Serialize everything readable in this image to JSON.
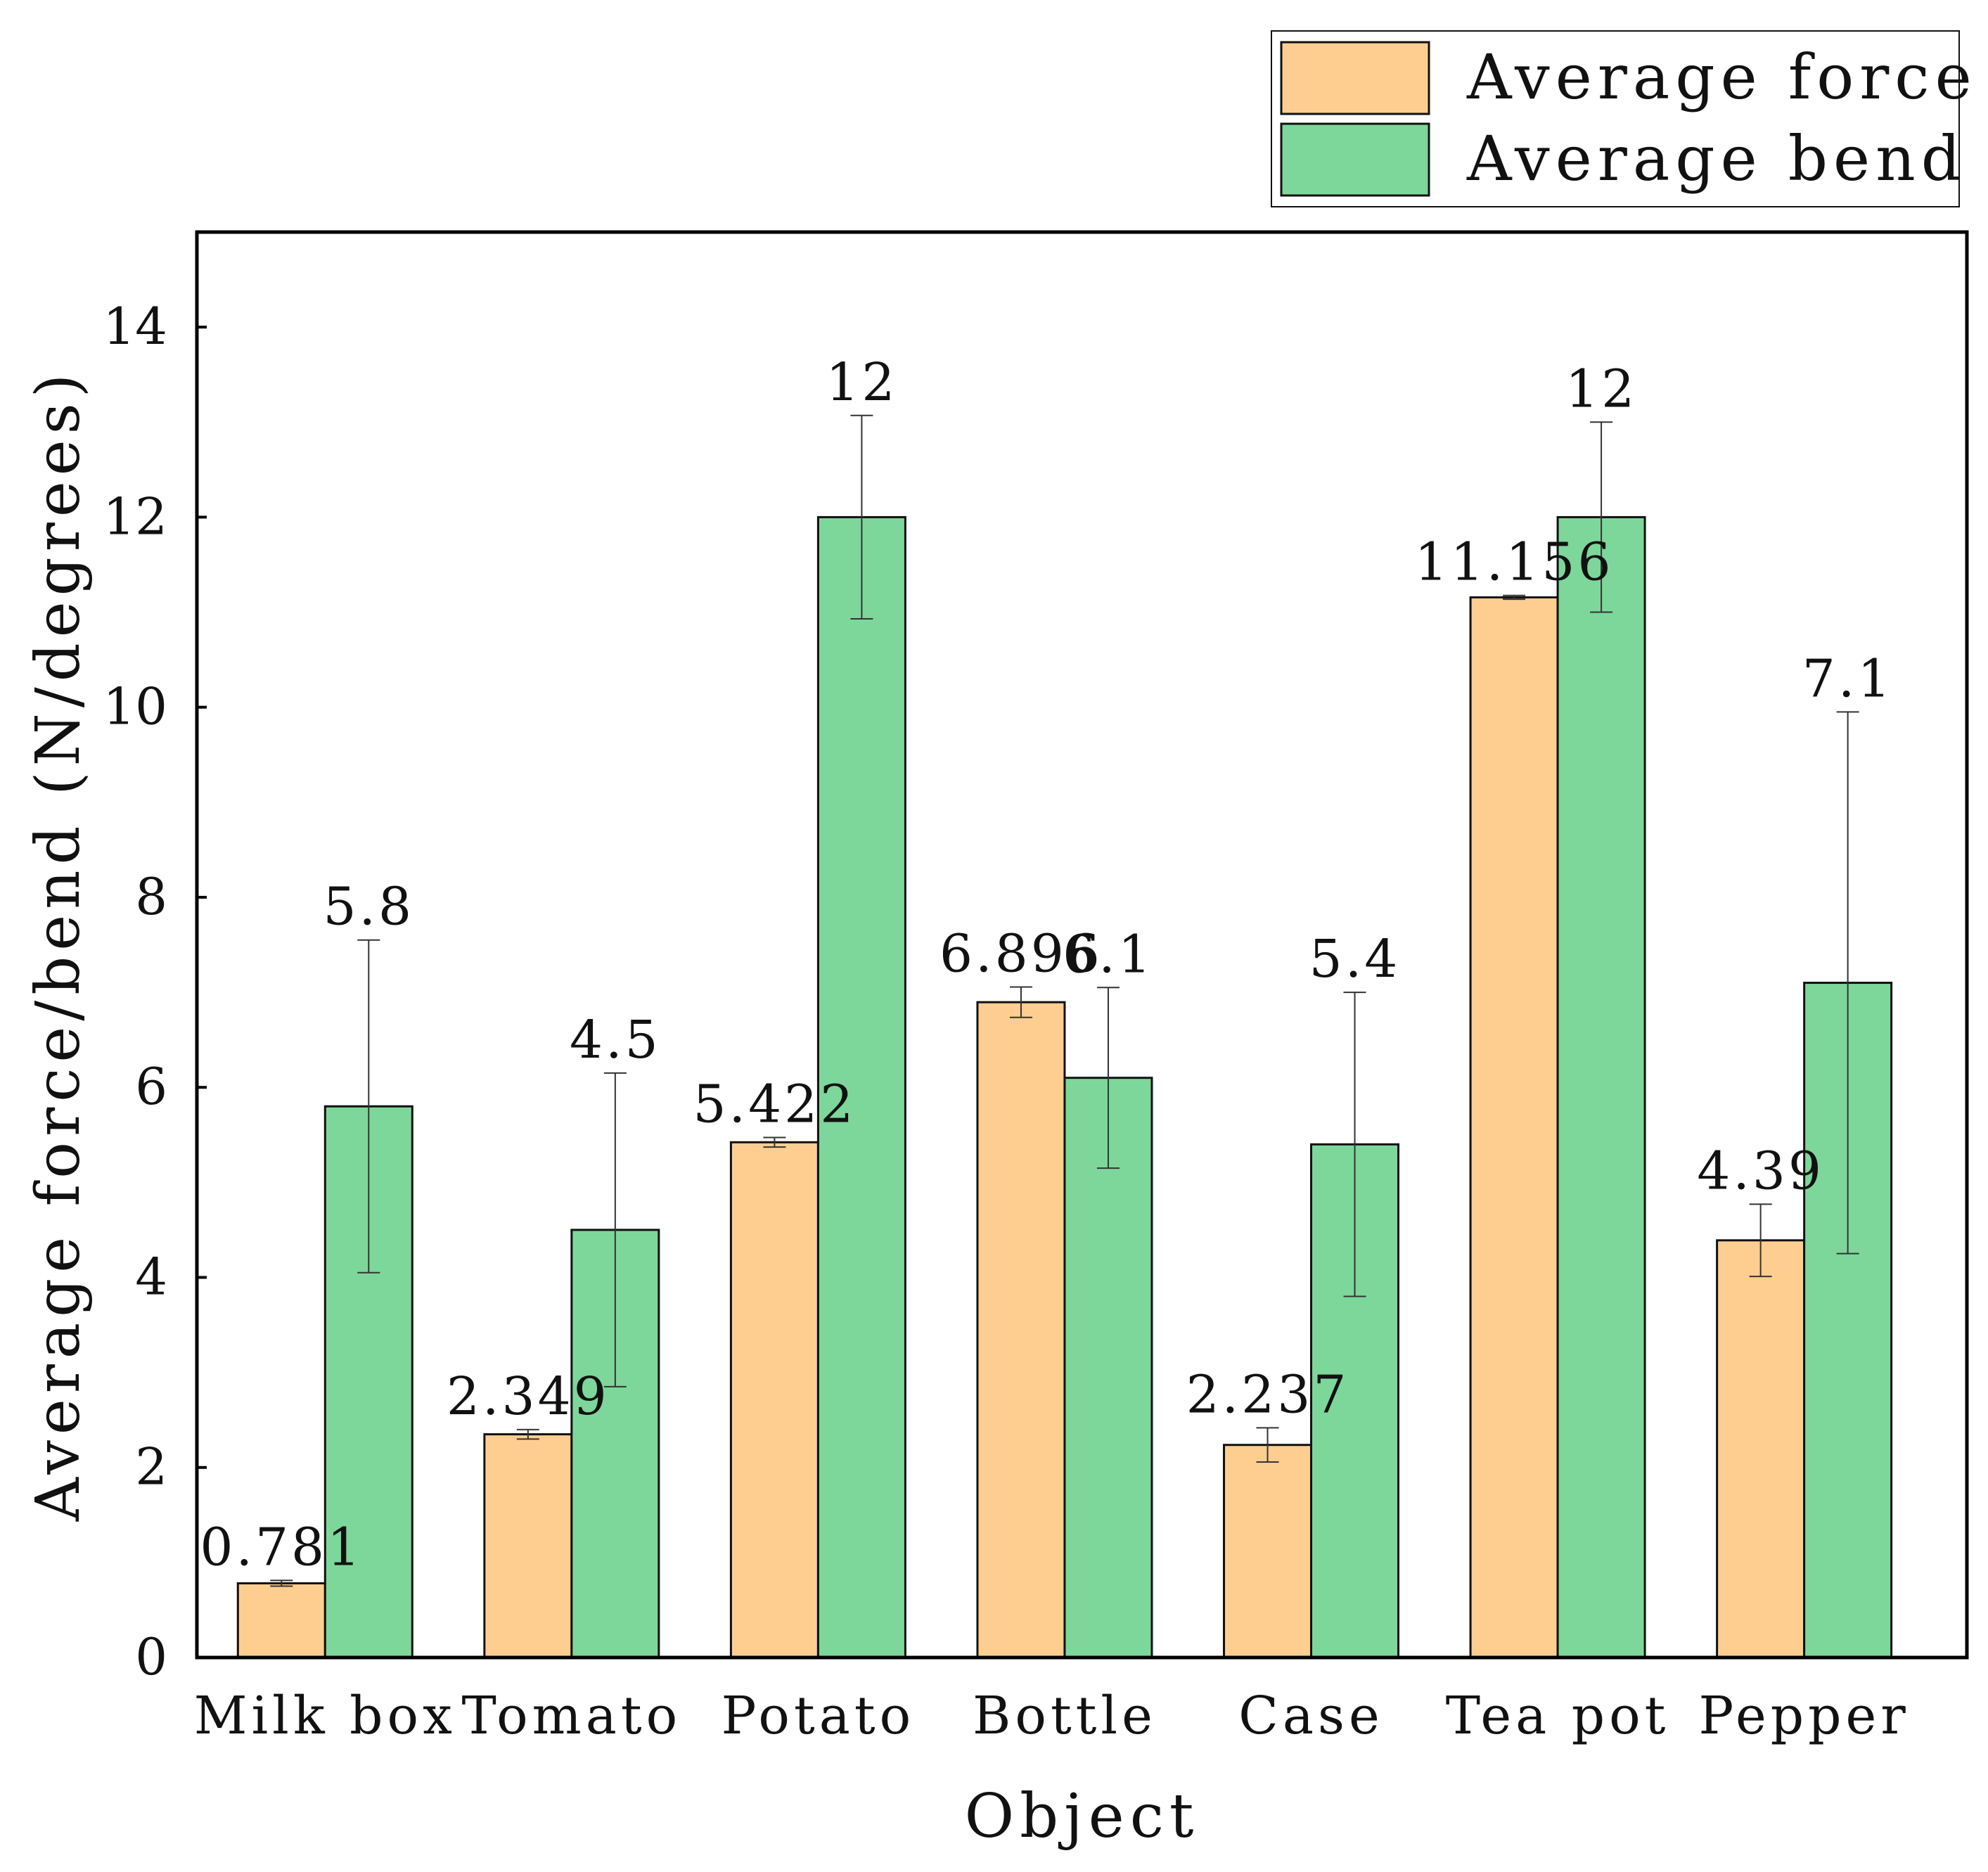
{
  "chart_data": {
    "type": "bar",
    "title": "",
    "xlabel": "Object",
    "ylabel": "Average force/bend (N/degrees)",
    "ylim": [
      0,
      15
    ],
    "yticks": [
      0,
      2,
      4,
      6,
      8,
      10,
      12,
      14
    ],
    "categories": [
      "Milk box",
      "Tomato",
      "Potato",
      "Bottle",
      "Case",
      "Tea pot",
      "Pepper"
    ],
    "series": [
      {
        "name": "Average force",
        "color": "#FECE90",
        "values": [
          0.781,
          2.349,
          5.422,
          6.896,
          2.237,
          11.156,
          4.39
        ],
        "labels": [
          "0.781",
          "2.349",
          "5.422",
          "6.896",
          "2.237",
          "11.156",
          "4.39"
        ],
        "errors": [
          0.03,
          0.05,
          0.05,
          0.16,
          0.18,
          0.02,
          0.38
        ]
      },
      {
        "name": "Average bend",
        "color": "#7DD79A",
        "values": [
          5.8,
          4.5,
          12,
          6.1,
          5.4,
          12,
          7.1
        ],
        "labels": [
          "5.8",
          "4.5",
          "12",
          "6.1",
          "5.4",
          "12",
          "7.1"
        ],
        "errors": [
          1.75,
          1.65,
          1.07,
          0.95,
          1.6,
          1.0,
          2.85
        ]
      }
    ],
    "legend_position": "top-right",
    "grid": false
  }
}
